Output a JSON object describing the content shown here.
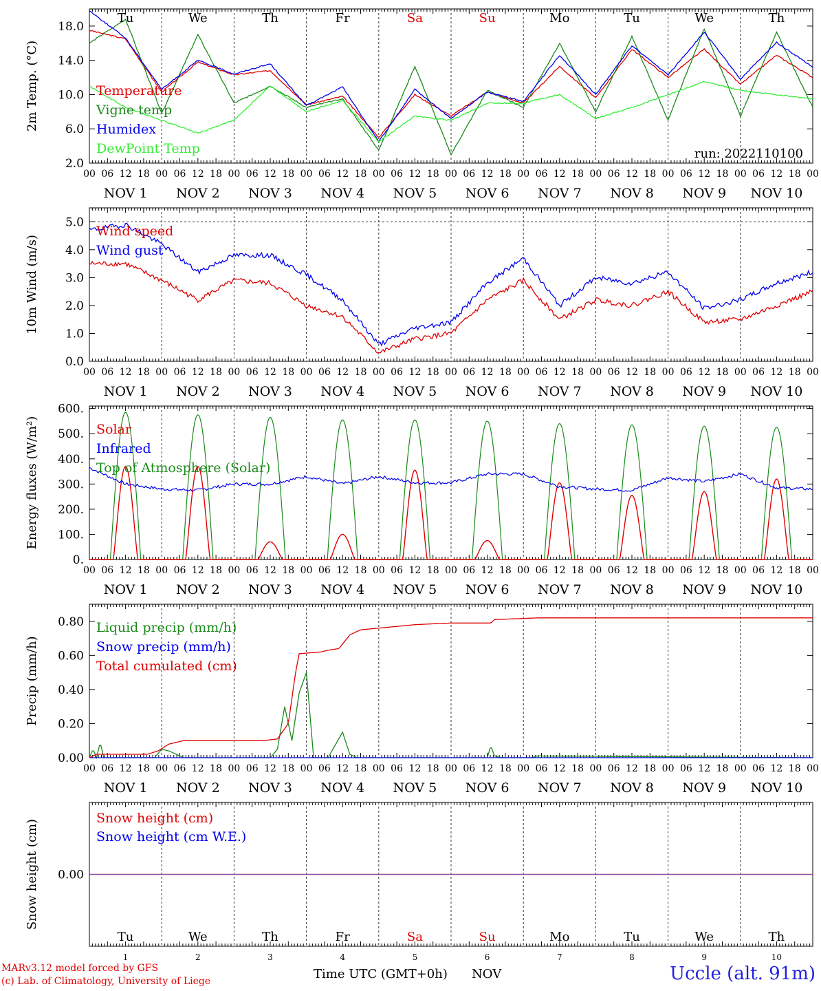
{
  "colors": {
    "red": "#e00000",
    "blue": "#0000ee",
    "green": "#1a8a1a",
    "lightgreen": "#33ee33",
    "snow_line": "#8844aa",
    "station": "#2222dd"
  },
  "run_label": "run: 2022110100",
  "weekdays": [
    "Tu",
    "We",
    "Th",
    "Fr",
    "Sa",
    "Su",
    "Mo",
    "Tu",
    "We",
    "Th"
  ],
  "weekend_days": [
    "Sa",
    "Su"
  ],
  "hour_ticks": [
    "00",
    "06",
    "12",
    "18"
  ],
  "date_labels": [
    "NOV  1",
    "NOV  2",
    "NOV  3",
    "NOV  4",
    "NOV  5",
    "NOV  6",
    "NOV  7",
    "NOV  8",
    "NOV  9",
    "NOV 10"
  ],
  "bottom_day_numbers": [
    "1",
    "2",
    "3",
    "4",
    "5",
    "6",
    "7",
    "8",
    "9",
    "10"
  ],
  "footer": {
    "model": "MARv3.12 model forced by GFS",
    "lab": "(c) Lab. of Climatology, University of Liege",
    "time_axis": "Time UTC (GMT+0h)",
    "month": "NOV",
    "station": "Uccle (alt. 91m)"
  },
  "chart_data": [
    {
      "type": "line",
      "ylabel": "2m Temp. (°C)",
      "ylim": [
        2.0,
        20.0
      ],
      "yticks": [
        2.0,
        6.0,
        10.0,
        14.0,
        18.0
      ],
      "ytick_labels": [
        "2.0",
        "6.0",
        "10.0",
        "14.0",
        "18.0"
      ],
      "x": [
        0,
        0.5,
        1.0,
        1.5,
        2.0,
        2.5,
        3.0,
        3.5,
        4.0,
        4.5,
        5.0,
        5.5,
        6.0,
        6.5,
        7.0,
        7.5,
        8.0,
        8.5,
        9.0,
        9.5,
        10.0
      ],
      "series": [
        {
          "name": "Temperature",
          "color": "#e00000",
          "values": [
            17.5,
            16.5,
            10.3,
            13.8,
            12.3,
            12.8,
            8.8,
            9.8,
            5.0,
            10.0,
            7.5,
            10.3,
            9.0,
            13.3,
            9.6,
            15.3,
            12.0,
            15.3,
            11.2,
            14.6,
            12.0
          ]
        },
        {
          "name": "Vigne temp",
          "color": "#1a8a1a",
          "values": [
            16.0,
            18.8,
            7.8,
            17.0,
            9.0,
            11.0,
            8.5,
            9.5,
            3.5,
            13.3,
            3.0,
            10.5,
            8.5,
            16.0,
            8.0,
            16.8,
            7.0,
            17.7,
            7.5,
            17.3,
            8.5
          ]
        },
        {
          "name": "Humidex",
          "color": "#0000ee",
          "values": [
            19.8,
            16.6,
            10.6,
            14.0,
            12.4,
            13.6,
            8.7,
            10.9,
            4.5,
            10.6,
            7.2,
            10.3,
            9.2,
            14.6,
            10.0,
            15.7,
            12.3,
            17.3,
            11.8,
            16.1,
            13.2
          ]
        },
        {
          "name": "DewPoint Temp",
          "color": "#33ee33",
          "values": [
            11.0,
            8.5,
            7.0,
            5.5,
            7.0,
            11.0,
            8.0,
            9.3,
            4.5,
            7.5,
            7.0,
            9.0,
            9.0,
            10.0,
            7.2,
            8.5,
            10.0,
            11.5,
            10.5,
            10.0,
            9.5
          ]
        }
      ]
    },
    {
      "type": "line",
      "ylabel": "10m Wind (m/s)",
      "ylim": [
        0.0,
        5.5
      ],
      "yticks": [
        0.0,
        1.0,
        2.0,
        3.0,
        4.0,
        5.0
      ],
      "ytick_labels": [
        "0.0",
        "1.0",
        "2.0",
        "3.0",
        "4.0",
        "5.0"
      ],
      "dashed_line": 5.0,
      "x": [
        0,
        0.5,
        1.0,
        1.5,
        2.0,
        2.5,
        3.0,
        3.5,
        4.0,
        4.5,
        5.0,
        5.5,
        6.0,
        6.5,
        7.0,
        7.5,
        8.0,
        8.5,
        9.0,
        9.5,
        10.0
      ],
      "series": [
        {
          "name": "Wind speed",
          "color": "#e00000",
          "values": [
            3.5,
            3.5,
            2.9,
            2.2,
            2.9,
            2.8,
            2.0,
            1.6,
            0.3,
            0.8,
            1.0,
            2.2,
            2.9,
            1.5,
            2.2,
            2.0,
            2.5,
            1.4,
            1.5,
            2.0,
            2.5
          ]
        },
        {
          "name": "Wind gust",
          "color": "#0000ee",
          "values": [
            4.7,
            4.9,
            4.2,
            3.2,
            3.8,
            3.8,
            3.1,
            2.2,
            0.6,
            1.2,
            1.4,
            2.8,
            3.7,
            2.0,
            3.0,
            2.8,
            3.2,
            1.9,
            2.2,
            2.8,
            3.2
          ]
        }
      ]
    },
    {
      "type": "line",
      "ylabel": "Energy fluxes (W/m²)",
      "ylim": [
        0,
        610
      ],
      "yticks": [
        0,
        100,
        200,
        300,
        400,
        500,
        600
      ],
      "ytick_labels": [
        "0.",
        "100.",
        "200.",
        "300.",
        "400.",
        "500.",
        "600."
      ],
      "solar_peaks": [
        370,
        370,
        70,
        100,
        355,
        75,
        305,
        255,
        270,
        320
      ],
      "toa_peaks": [
        585,
        575,
        565,
        555,
        555,
        550,
        540,
        535,
        530,
        525
      ],
      "x": [
        0,
        0.5,
        1.0,
        1.5,
        2.0,
        2.5,
        3.0,
        3.5,
        4.0,
        4.5,
        5.0,
        5.5,
        6.0,
        6.5,
        7.0,
        7.5,
        8.0,
        8.5,
        9.0,
        9.5,
        10.0
      ],
      "series": [
        {
          "name": "Solar",
          "color": "#e00000"
        },
        {
          "name": "Infrared",
          "color": "#0000ee",
          "values": [
            365,
            300,
            280,
            275,
            300,
            300,
            330,
            300,
            330,
            305,
            305,
            340,
            340,
            290,
            280,
            275,
            325,
            310,
            340,
            285,
            280
          ]
        },
        {
          "name": "Top of Atmosphere (Solar)",
          "color": "#1a8a1a"
        }
      ]
    },
    {
      "type": "line",
      "ylabel": "Precip (mm/h)",
      "ylim": [
        0.0,
        0.9
      ],
      "yticks": [
        0.0,
        0.2,
        0.4,
        0.6,
        0.8
      ],
      "ytick_labels": [
        "0.00",
        "0.20",
        "0.40",
        "0.60",
        "0.80"
      ],
      "series": [
        {
          "name": "Liquid precip (mm/h)",
          "color": "#1a8a1a",
          "x": [
            0.0,
            0.05,
            0.1,
            0.15,
            0.2,
            0.3,
            0.9,
            1.0,
            1.1,
            1.2,
            1.3,
            2.5,
            2.6,
            2.7,
            2.8,
            2.9,
            3.0,
            3.1,
            3.2,
            3.3,
            3.5,
            3.6,
            3.7,
            4.0,
            5.0,
            5.5,
            5.55,
            5.6,
            5.7,
            6.1,
            6.2,
            10.0
          ],
          "values": [
            0.0,
            0.05,
            0.0,
            0.09,
            0.0,
            0.0,
            0.0,
            0.05,
            0.04,
            0.02,
            0.0,
            0.0,
            0.05,
            0.3,
            0.1,
            0.38,
            0.5,
            0.0,
            0.0,
            0.0,
            0.15,
            0.02,
            0.0,
            0.0,
            0.0,
            0.0,
            0.07,
            0.01,
            0.0,
            0.0,
            0.01,
            0.0
          ]
        },
        {
          "name": "Snow precip (mm/h)",
          "color": "#0000ee",
          "x": [
            0,
            10
          ],
          "values": [
            0.0,
            0.0
          ]
        },
        {
          "name": "Total cumulated (cm)",
          "color": "#e00000",
          "x": [
            0.0,
            0.1,
            0.2,
            0.8,
            0.95,
            1.1,
            1.3,
            2.4,
            2.6,
            2.75,
            2.85,
            2.9,
            3.2,
            3.3,
            3.45,
            3.6,
            3.75,
            4.0,
            4.5,
            5.0,
            5.55,
            5.6,
            6.2,
            10.0
          ],
          "values": [
            0.0,
            0.02,
            0.02,
            0.02,
            0.04,
            0.08,
            0.1,
            0.1,
            0.11,
            0.2,
            0.5,
            0.61,
            0.62,
            0.63,
            0.64,
            0.72,
            0.75,
            0.76,
            0.78,
            0.79,
            0.79,
            0.81,
            0.82,
            0.82
          ]
        }
      ]
    },
    {
      "type": "line",
      "ylabel": "Snow height (cm)",
      "ylim": [
        -1,
        1
      ],
      "yticks": [
        0.0
      ],
      "ytick_labels": [
        "0.00"
      ],
      "x": [
        0,
        10
      ],
      "series": [
        {
          "name": "Snow height (cm)",
          "color": "#e00000",
          "values": [
            0.0,
            0.0
          ]
        },
        {
          "name": "Snow height (cm W.E.)",
          "color": "#0000ee",
          "values": [
            0.0,
            0.0
          ]
        }
      ]
    }
  ]
}
